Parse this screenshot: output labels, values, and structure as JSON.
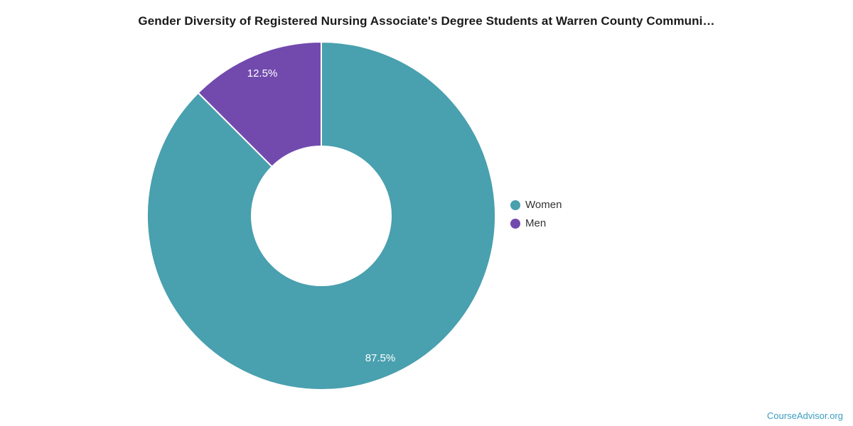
{
  "title": "Gender Diversity of Registered Nursing Associate's Degree Students at Warren County Communi…",
  "footer": {
    "link_text": "CourseAdvisor.org",
    "link_color": "#3c9ec0"
  },
  "chart_data": {
    "type": "pie",
    "subtype": "donut",
    "title": "Gender Diversity of Registered Nursing Associate's Degree Students at Warren County Communi…",
    "series": [
      {
        "name": "Women",
        "value": 87.5,
        "label": "87.5%",
        "color": "#49A0AE"
      },
      {
        "name": "Men",
        "value": 12.5,
        "label": "12.5%",
        "color": "#724AAE"
      }
    ],
    "start_angle_deg": 0,
    "direction": "clockwise",
    "inner_radius_ratio": 0.4,
    "slice_border_color": "#ffffff",
    "data_label_color": "#ffffff",
    "legend_position": "right",
    "legend_entries": [
      "Women",
      "Men"
    ],
    "grid": "off",
    "background": "#ffffff"
  }
}
